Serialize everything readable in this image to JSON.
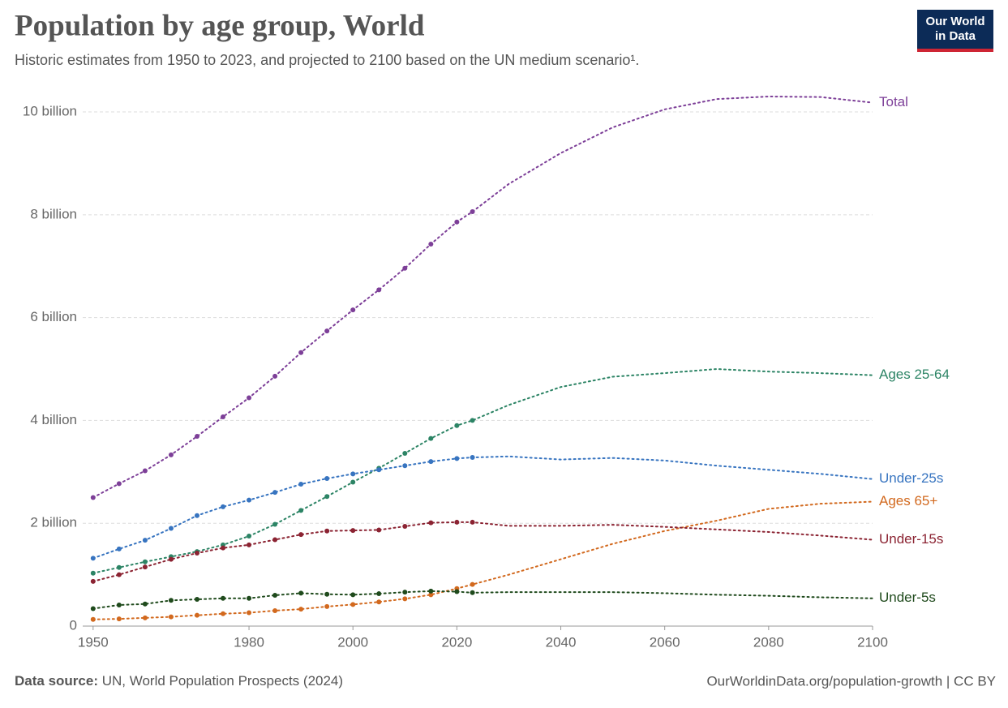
{
  "chart_data": {
    "type": "line",
    "title": "Population by age group, World",
    "subtitle": "Historic estimates from 1950 to 2023, and projected to 2100 based on the UN medium scenario¹.",
    "logo": [
      "Our World",
      "in Data"
    ],
    "source_label": "Data source:",
    "source": "UN, World Population Prospects (2024)",
    "credit": "OurWorldinData.org/population-growth | CC BY",
    "projection_from": 2023,
    "x": [
      1950,
      1955,
      1960,
      1965,
      1970,
      1975,
      1980,
      1985,
      1990,
      1995,
      2000,
      2005,
      2010,
      2015,
      2020,
      2023,
      2030,
      2040,
      2050,
      2060,
      2070,
      2080,
      2090,
      2100
    ],
    "xlim": [
      1948,
      2100
    ],
    "xticks": [
      1950,
      1980,
      2000,
      2020,
      2040,
      2060,
      2080,
      2100
    ],
    "ylim": [
      0,
      10.3
    ],
    "yticks": [
      0,
      {
        "value": 2,
        "label": "2 billion"
      },
      {
        "value": 4,
        "label": "4 billion"
      },
      {
        "value": 6,
        "label": "6 billion"
      },
      {
        "value": 8,
        "label": "8 billion"
      },
      {
        "value": 10,
        "label": "10 billion"
      }
    ],
    "grid": true,
    "series": [
      {
        "name": "Total",
        "color": "#7d3f98",
        "values": [
          2.5,
          2.77,
          3.02,
          3.33,
          3.69,
          4.07,
          4.44,
          4.86,
          5.32,
          5.74,
          6.15,
          6.54,
          6.96,
          7.43,
          7.86,
          8.06,
          8.6,
          9.2,
          9.7,
          10.05,
          10.25,
          10.3,
          10.29,
          10.18
        ]
      },
      {
        "name": "Ages 25-64",
        "color": "#2c8465",
        "values": [
          1.03,
          1.14,
          1.25,
          1.35,
          1.45,
          1.58,
          1.75,
          1.98,
          2.25,
          2.52,
          2.8,
          3.07,
          3.36,
          3.65,
          3.9,
          4.0,
          4.3,
          4.65,
          4.85,
          4.92,
          5.0,
          4.95,
          4.92,
          4.88
        ]
      },
      {
        "name": "Under-25s",
        "color": "#3774c0",
        "values": [
          1.32,
          1.5,
          1.67,
          1.9,
          2.15,
          2.32,
          2.45,
          2.6,
          2.76,
          2.87,
          2.96,
          3.04,
          3.12,
          3.2,
          3.26,
          3.28,
          3.3,
          3.24,
          3.27,
          3.22,
          3.12,
          3.04,
          2.96,
          2.86
        ]
      },
      {
        "name": "Ages 65+",
        "color": "#d2691e",
        "values": [
          0.13,
          0.14,
          0.16,
          0.18,
          0.21,
          0.24,
          0.26,
          0.3,
          0.33,
          0.38,
          0.42,
          0.47,
          0.53,
          0.61,
          0.73,
          0.81,
          1.0,
          1.3,
          1.6,
          1.85,
          2.05,
          2.28,
          2.38,
          2.42
        ]
      },
      {
        "name": "Under-15s",
        "color": "#8b2332",
        "values": [
          0.87,
          1.0,
          1.15,
          1.3,
          1.42,
          1.52,
          1.58,
          1.68,
          1.78,
          1.85,
          1.86,
          1.87,
          1.94,
          2.01,
          2.02,
          2.02,
          1.95,
          1.95,
          1.97,
          1.93,
          1.88,
          1.83,
          1.76,
          1.68
        ]
      },
      {
        "name": "Under-5s",
        "color": "#1f4a1c",
        "values": [
          0.34,
          0.41,
          0.43,
          0.5,
          0.52,
          0.54,
          0.54,
          0.6,
          0.64,
          0.62,
          0.61,
          0.63,
          0.66,
          0.68,
          0.67,
          0.65,
          0.66,
          0.66,
          0.66,
          0.64,
          0.61,
          0.59,
          0.56,
          0.54
        ]
      }
    ]
  }
}
